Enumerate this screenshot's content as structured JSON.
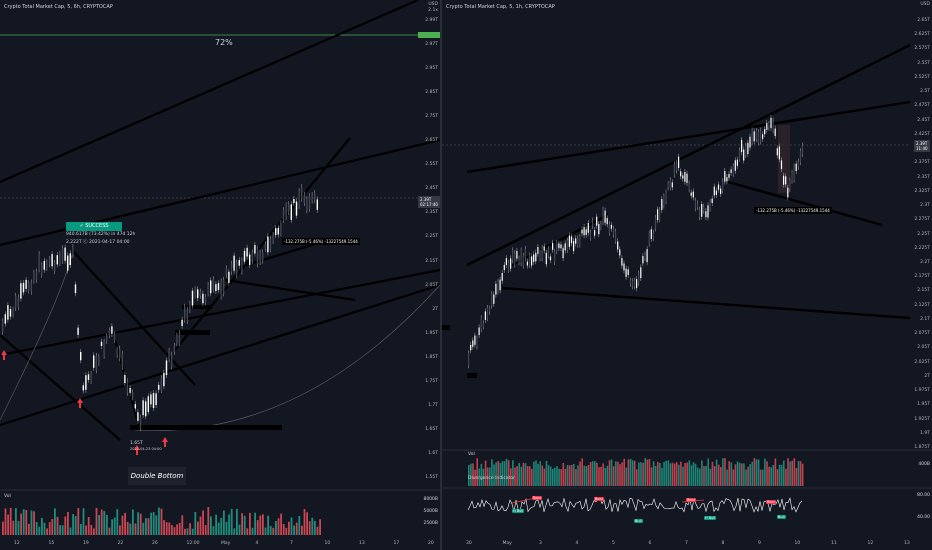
{
  "left": {
    "title": "Crypto Total Market Cap, 5, 6h, CRYPTOCAP",
    "pct_label": "72%",
    "success_label": "✓ SUCCESS",
    "trade_info_1": "940.617B (73.42%) in 47d 12h",
    "trade_info_2": "2.222T ⓒ 2021-04-17 04:00",
    "measure_label": "-132.275B (-5.46%) -13227549.1544",
    "low_label": "1.65T",
    "low_date": "2021-04-23 04:00",
    "double_bottom": "Double Bottom",
    "vol_label": "Vol",
    "price_tag": "2.39T",
    "price_tag_sub": "02:17:40",
    "axis_unit": "USD",
    "axis_sub": "2.1x",
    "price_levels": [
      "2.99T",
      "2.97T",
      "2.95T",
      "2.85T",
      "2.75T",
      "2.65T",
      "2.55T",
      "2.45T",
      "2.35T",
      "2.25T",
      "2.15T",
      "2.05T",
      "2T",
      "1.95T",
      "1.85T",
      "1.75T",
      "1.7T",
      "1.65T",
      "1.6T",
      "1.55T"
    ],
    "vol_levels": [
      "8000B",
      "5000B",
      "2500B"
    ],
    "x_labels": [
      "12",
      "15",
      "19",
      "22",
      "26",
      "12:00",
      "May",
      "4",
      "7",
      "10",
      "13",
      "17",
      "20"
    ]
  },
  "right": {
    "title": "Crypto Total Market Cap, 5, 1h, CRYPTOCAP",
    "measure_label": "-132.275B (-5.46%) -13227549.1544",
    "vol_label": "Vol",
    "div_label": "Divergence Indicator",
    "price_tag": "2.39T",
    "price_tag_sub": "11:40",
    "axis_unit": "USD",
    "price_levels": [
      "2.65T",
      "2.625T",
      "2.575T",
      "2.55T",
      "2.525T",
      "2.5T",
      "2.475T",
      "2.45T",
      "2.425T",
      "2.4T",
      "2.375T",
      "2.35T",
      "2.325T",
      "2.3T",
      "2.275T",
      "2.25T",
      "2.225T",
      "2.2T",
      "2.175T",
      "2.15T",
      "2.125T",
      "2.1T",
      "2.075T",
      "2.05T",
      "2.025T",
      "2T",
      "1.975T",
      "1.95T",
      "1.925T",
      "1.9T",
      "1.875T"
    ],
    "vol_levels": [
      "400B"
    ],
    "div_levels": [
      "80.00",
      "40.00"
    ],
    "x_labels": [
      "30",
      "May",
      "3",
      "4",
      "5",
      "6",
      "7",
      "8",
      "9",
      "10",
      "11",
      "12",
      "13"
    ],
    "badges": [
      {
        "t": "H Bull",
        "k": "bull"
      },
      {
        "t": "Bear",
        "k": "bear"
      },
      {
        "t": "Bear",
        "k": "bear"
      },
      {
        "t": "Bull",
        "k": "bull"
      },
      {
        "t": "Bear",
        "k": "bear"
      },
      {
        "t": "H Bull",
        "k": "bull"
      },
      {
        "t": "Bear",
        "k": "bear"
      },
      {
        "t": "Bull",
        "k": "bull"
      }
    ]
  },
  "colors": {
    "bg": "#131722",
    "up": "#089981",
    "down": "#f23645",
    "candle": "#d1d4dc",
    "line": "#000000",
    "grid": "#2a2e39"
  }
}
